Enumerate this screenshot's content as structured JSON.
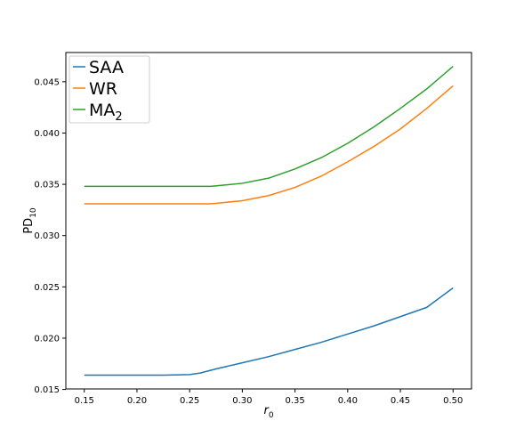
{
  "chart_data": {
    "type": "line",
    "xlabel": "r",
    "xlabel_sub": "0",
    "ylabel": "PD",
    "ylabel_sub": "10",
    "xlim": [
      0.1325,
      0.5175
    ],
    "ylim": [
      0.01505,
      0.04785
    ],
    "xticks": [
      0.15,
      0.2,
      0.25,
      0.3,
      0.35,
      0.4,
      0.45,
      0.5
    ],
    "xtick_labels": [
      "0.15",
      "0.20",
      "0.25",
      "0.30",
      "0.35",
      "0.40",
      "0.45",
      "0.50"
    ],
    "yticks": [
      0.015,
      0.02,
      0.025,
      0.03,
      0.035,
      0.04,
      0.045
    ],
    "ytick_labels": [
      "0.015",
      "0.020",
      "0.025",
      "0.030",
      "0.035",
      "0.040",
      "0.045"
    ],
    "grid": false,
    "legend_position": "top-left",
    "series": [
      {
        "name": "SAA",
        "name_sub": "",
        "color": "#1f77b4",
        "x": [
          0.15,
          0.175,
          0.2,
          0.225,
          0.25,
          0.26,
          0.275,
          0.3,
          0.325,
          0.35,
          0.375,
          0.4,
          0.425,
          0.45,
          0.475,
          0.5
        ],
        "y": [
          0.0164,
          0.0164,
          0.0164,
          0.0164,
          0.01645,
          0.0166,
          0.017,
          0.0176,
          0.0182,
          0.0189,
          0.0196,
          0.0204,
          0.0212,
          0.0221,
          0.023,
          0.0249
        ]
      },
      {
        "name": "WR",
        "name_sub": "",
        "color": "#ff7f0e",
        "x": [
          0.15,
          0.175,
          0.2,
          0.225,
          0.25,
          0.27,
          0.28,
          0.3,
          0.325,
          0.35,
          0.375,
          0.4,
          0.425,
          0.45,
          0.475,
          0.5
        ],
        "y": [
          0.0331,
          0.0331,
          0.0331,
          0.0331,
          0.0331,
          0.0331,
          0.0332,
          0.0334,
          0.0339,
          0.0347,
          0.0358,
          0.0372,
          0.0387,
          0.0404,
          0.0424,
          0.0446
        ]
      },
      {
        "name": "MA",
        "name_sub": "2",
        "color": "#2ca02c",
        "x": [
          0.15,
          0.175,
          0.2,
          0.225,
          0.25,
          0.27,
          0.28,
          0.3,
          0.325,
          0.35,
          0.375,
          0.4,
          0.425,
          0.45,
          0.475,
          0.5
        ],
        "y": [
          0.0348,
          0.0348,
          0.0348,
          0.0348,
          0.0348,
          0.0348,
          0.0349,
          0.0351,
          0.0356,
          0.0365,
          0.0376,
          0.039,
          0.0406,
          0.0424,
          0.0443,
          0.0465
        ]
      }
    ]
  }
}
